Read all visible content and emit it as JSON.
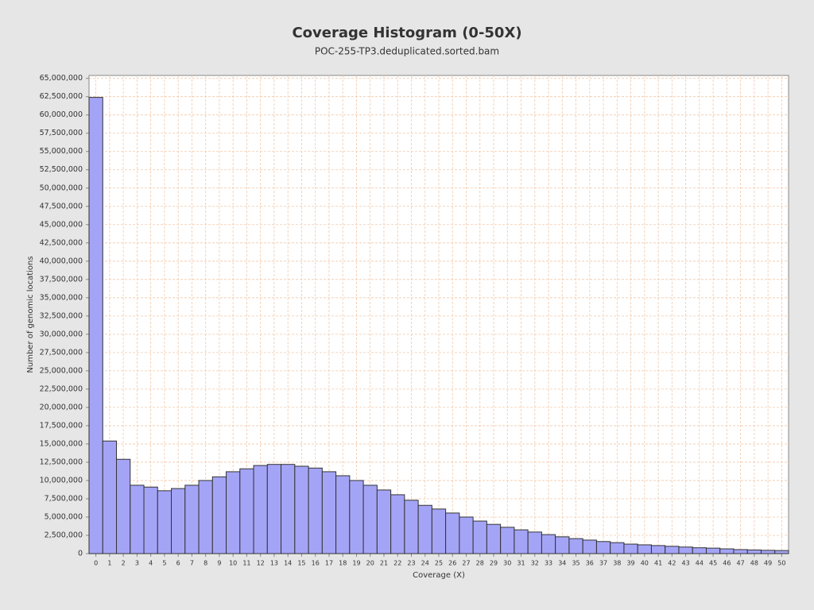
{
  "chart_data": {
    "type": "bar",
    "title": "Coverage Histogram (0-50X)",
    "subtitle": "POC-255-TP3.deduplicated.sorted.bam",
    "x_label": "Coverage (X)",
    "y_label": "Number of genomic locations",
    "categories": [
      "0",
      "1",
      "2",
      "3",
      "4",
      "5",
      "6",
      "7",
      "8",
      "9",
      "10",
      "11",
      "12",
      "13",
      "14",
      "15",
      "16",
      "17",
      "18",
      "19",
      "20",
      "21",
      "22",
      "23",
      "24",
      "25",
      "26",
      "27",
      "28",
      "29",
      "30",
      "31",
      "32",
      "33",
      "34",
      "35",
      "36",
      "37",
      "38",
      "39",
      "40",
      "41",
      "42",
      "43",
      "44",
      "45",
      "46",
      "47",
      "48",
      "49",
      "50"
    ],
    "values": [
      62400000,
      15400000,
      12900000,
      9350000,
      9100000,
      8600000,
      8900000,
      9350000,
      10000000,
      10500000,
      11200000,
      11600000,
      12050000,
      12200000,
      12200000,
      11950000,
      11700000,
      11200000,
      10650000,
      10000000,
      9350000,
      8700000,
      8050000,
      7300000,
      6600000,
      6100000,
      5550000,
      5000000,
      4450000,
      4000000,
      3600000,
      3250000,
      2950000,
      2600000,
      2300000,
      2050000,
      1850000,
      1650000,
      1500000,
      1300000,
      1200000,
      1100000,
      1000000,
      900000,
      800000,
      750000,
      650000,
      550000,
      500000,
      450000,
      420000
    ],
    "color": "#a4a4f7",
    "ylim": [
      0,
      65400000
    ],
    "yticks": [
      0,
      {
        "value": 2500000,
        "label": "2,500,000"
      },
      {
        "value": 5000000,
        "label": "5,000,000"
      },
      {
        "value": 7500000,
        "label": "7,500,000"
      },
      {
        "value": 10000000,
        "label": "10,000,000"
      },
      {
        "value": 12500000,
        "label": "12,500,000"
      },
      {
        "value": 15000000,
        "label": "15,000,000"
      },
      {
        "value": 17500000,
        "label": "17,500,000"
      },
      {
        "value": 20000000,
        "label": "20,000,000"
      },
      {
        "value": 22500000,
        "label": "22,500,000"
      },
      {
        "value": 25000000,
        "label": "25,000,000"
      },
      {
        "value": 27500000,
        "label": "27,500,000"
      },
      {
        "value": 30000000,
        "label": "30,000,000"
      },
      {
        "value": 32500000,
        "label": "32,500,000"
      },
      {
        "value": 35000000,
        "label": "35,000,000"
      },
      {
        "value": 37500000,
        "label": "37,500,000"
      },
      {
        "value": 40000000,
        "label": "40,000,000"
      },
      {
        "value": 42500000,
        "label": "42,500,000"
      },
      {
        "value": 45000000,
        "label": "45,000,000"
      },
      {
        "value": 47500000,
        "label": "47,500,000"
      },
      {
        "value": 50000000,
        "label": "50,000,000"
      },
      {
        "value": 52500000,
        "label": "52,500,000"
      },
      {
        "value": 55000000,
        "label": "55,000,000"
      },
      {
        "value": 57500000,
        "label": "57,500,000"
      },
      {
        "value": 60000000,
        "label": "60,000,000"
      },
      {
        "value": 62500000,
        "label": "62,500,000"
      },
      {
        "value": 65000000,
        "label": "65,000,000"
      }
    ],
    "grid": true
  }
}
